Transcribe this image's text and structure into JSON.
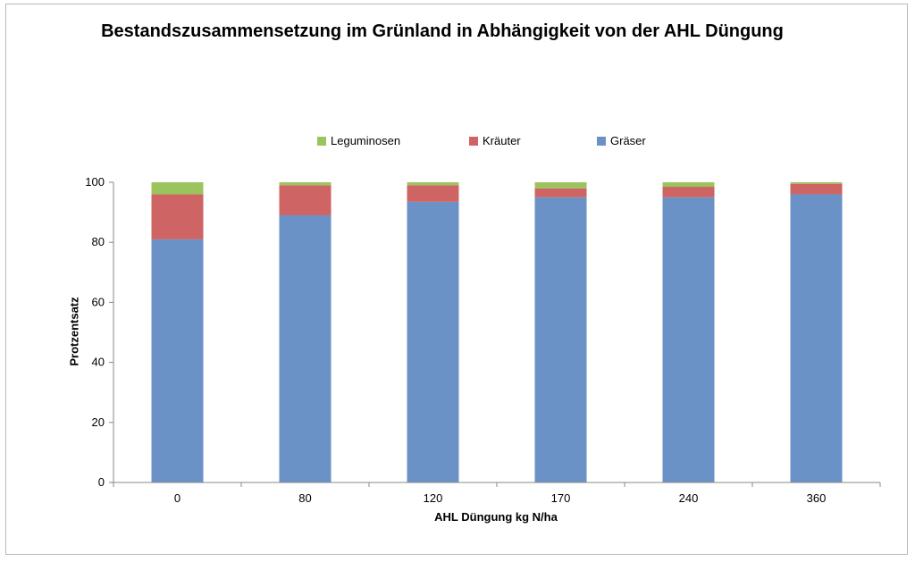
{
  "chart_data": {
    "type": "bar",
    "stacked": true,
    "title": "Bestandszusammensetzung im Grünland in Abhängigkeit von der AHL  Düngung",
    "xlabel": "AHL Düngung kg N/ha",
    "ylabel": "Protzentsatz",
    "categories": [
      "0",
      "80",
      "120",
      "170",
      "240",
      "360"
    ],
    "ylim": [
      0,
      100
    ],
    "yticks": [
      0,
      20,
      40,
      60,
      80,
      100
    ],
    "grid": false,
    "legend_position": "top",
    "series": [
      {
        "name": "Gräser",
        "color": "#6a92c6",
        "values": [
          81,
          89,
          93.5,
          95,
          95,
          96
        ]
      },
      {
        "name": "Kräuter",
        "color": "#ce6463",
        "values": [
          15,
          10,
          5.5,
          3,
          3.5,
          3.5
        ]
      },
      {
        "name": "Leguminosen",
        "color": "#9cc45e",
        "values": [
          4,
          1,
          1,
          2,
          1.5,
          0.5
        ]
      }
    ],
    "legend_order": [
      "Leguminosen",
      "Kräuter",
      "Gräser"
    ]
  }
}
